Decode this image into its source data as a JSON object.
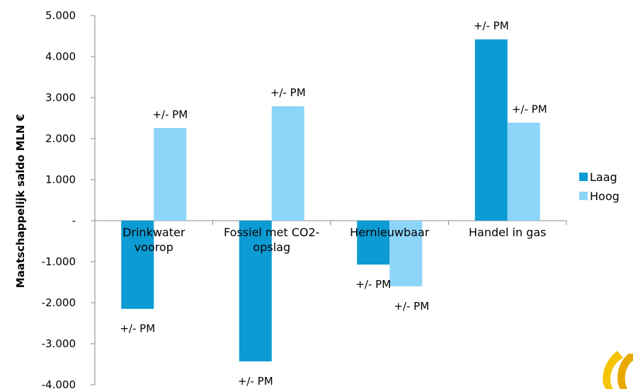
{
  "chart_data": {
    "type": "bar",
    "ylabel": "Maatschappelijk saldo MLN €",
    "ylim": [
      -4000,
      5000
    ],
    "ytick_values": [
      5000,
      4000,
      3000,
      2000,
      1000,
      0,
      -1000,
      -2000,
      -3000,
      -4000
    ],
    "ytick_labels": [
      "5.000",
      "4.000",
      "3.000",
      "2.000",
      "1.000",
      "-",
      "-1.000",
      "-2.000",
      "-3.000",
      "-4.000"
    ],
    "categories": [
      [
        "Drinkwater",
        "voorop"
      ],
      [
        "Fossiel met CO2-",
        "opslag"
      ],
      [
        "Hernieuwbaar"
      ],
      [
        "Handel in gas"
      ]
    ],
    "series": [
      {
        "name": "Laag",
        "color": "#0C9BD3",
        "values": [
          -2150,
          -3430,
          -1070,
          4420
        ],
        "labels": [
          "+/- PM",
          "+/- PM",
          "+/- PM",
          "+/- PM"
        ]
      },
      {
        "name": "Hoog",
        "color": "#8DD4F9",
        "values": [
          2260,
          2790,
          -1600,
          2390
        ],
        "labels": [
          "+/- PM",
          "+/- PM",
          "+/- PM",
          "+/- PM"
        ]
      }
    ],
    "grid": false,
    "legend_position": "right",
    "logo_colors": [
      "#F5C400",
      "#E8A800"
    ]
  }
}
